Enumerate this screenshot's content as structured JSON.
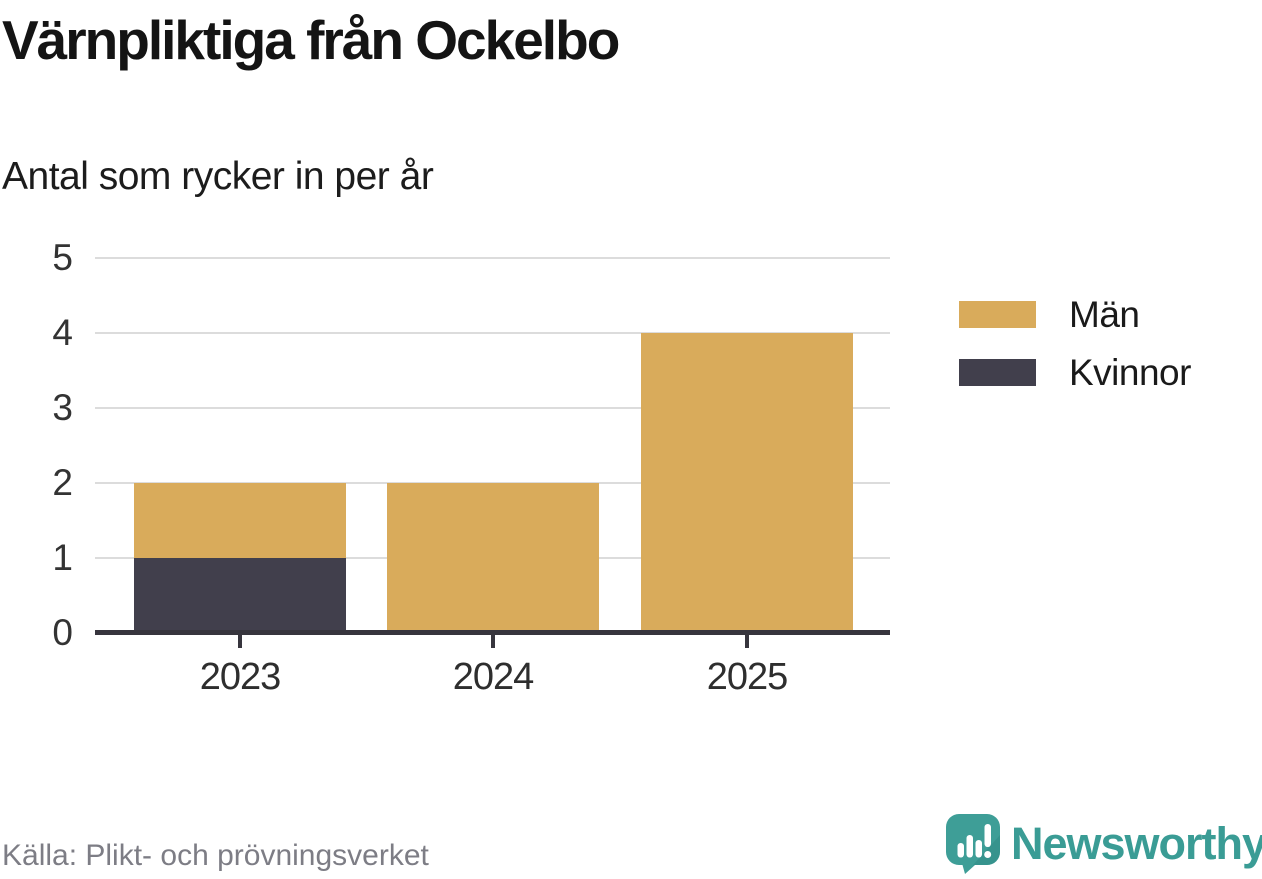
{
  "title": "Värnpliktiga från Ockelbo",
  "subtitle": "Antal som rycker in per år",
  "source": "Källa: Plikt- och prövningsverket",
  "brand": {
    "name": "Newsworthy"
  },
  "colors": {
    "men": "#d9ab5b",
    "women": "#413f4c",
    "axis": "#37353d",
    "gridline": "#dcdcdc",
    "brand_teal": "#3a9c95"
  },
  "legend": [
    {
      "label": "Män",
      "color_key": "men"
    },
    {
      "label": "Kvinnor",
      "color_key": "women"
    }
  ],
  "chart_data": {
    "type": "bar",
    "stacked": true,
    "title": "Värnpliktiga från Ockelbo",
    "subtitle": "Antal som rycker in per år",
    "categories": [
      "2023",
      "2024",
      "2025"
    ],
    "series": [
      {
        "name": "Män",
        "key": "men",
        "color": "#d9ab5b",
        "values": [
          1,
          2,
          4
        ]
      },
      {
        "name": "Kvinnor",
        "key": "women",
        "color": "#413f4c",
        "values": [
          1,
          0,
          0
        ]
      }
    ],
    "stack_order_bottom_to_top": [
      "women",
      "men"
    ],
    "totals": [
      2,
      2,
      4
    ],
    "xlabel": "",
    "ylabel": "",
    "ylim": [
      0,
      5
    ],
    "yticks": [
      0,
      1,
      2,
      3,
      4,
      5
    ],
    "grid": true,
    "legend_position": "right"
  }
}
